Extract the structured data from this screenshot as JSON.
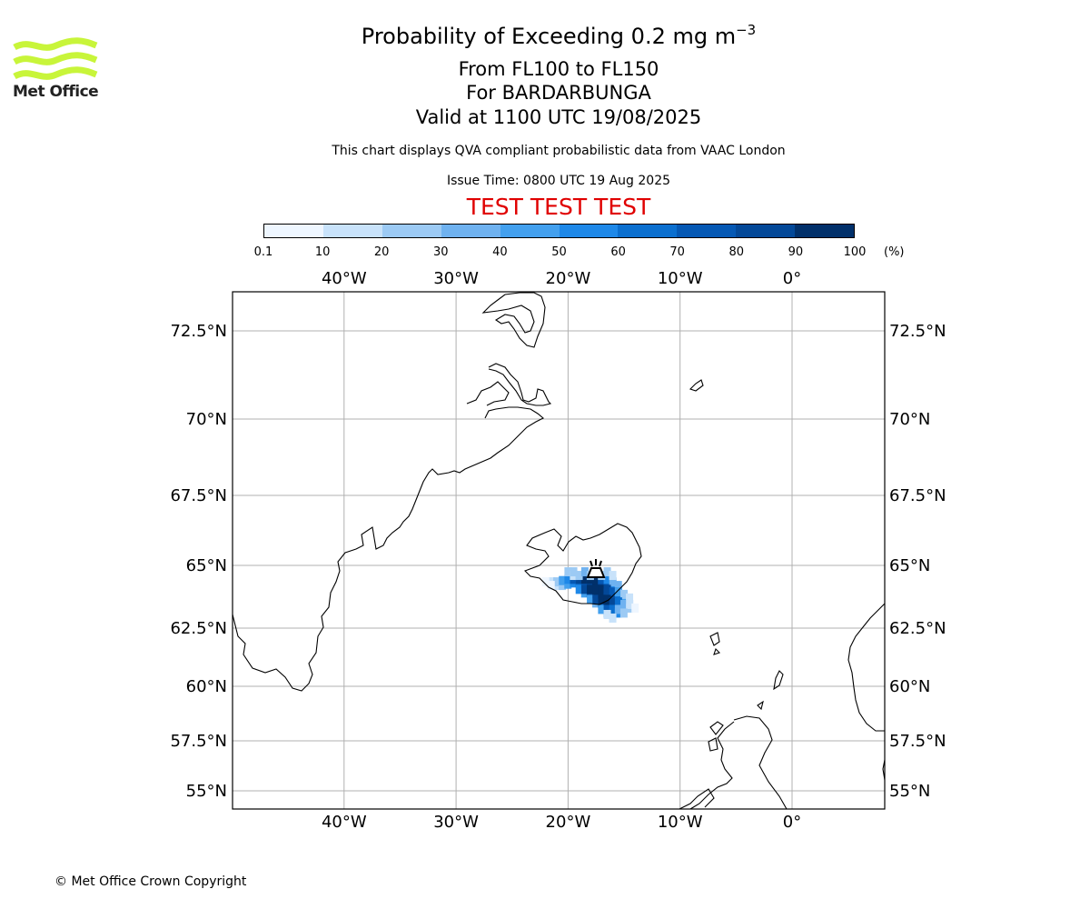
{
  "header": {
    "title_main": "Probability of Exceeding 0.2 mg m",
    "title_exp": "−3",
    "line2": "From FL100 to FL150",
    "line3": "For BARDARBUNGA",
    "line4": "Valid at 1100 UTC 19/08/2025",
    "info1": "This chart displays QVA compliant probabilistic data from VAAC London",
    "info2": "Issue Time: 0800 UTC 19 Aug 2025",
    "test_banner": "TEST TEST TEST",
    "test_color": "#e00000"
  },
  "logo": {
    "text": "Met Office",
    "color": "#c8f53a"
  },
  "colorbar": {
    "colors": [
      "#eef6ff",
      "#c8e2fa",
      "#9ccaf4",
      "#6fb2f0",
      "#43a0ee",
      "#1e88e8",
      "#0b6fcf",
      "#0558b4",
      "#034898",
      "#01306a"
    ],
    "ticks": [
      "0.1",
      "10",
      "20",
      "30",
      "40",
      "50",
      "60",
      "70",
      "80",
      "90",
      "100"
    ],
    "unit": "(%)"
  },
  "map": {
    "lon_labels": [
      "40°W",
      "30°W",
      "20°W",
      "10°W",
      "0°"
    ],
    "lat_labels": [
      "72.5°N",
      "70°N",
      "67.5°N",
      "65°N",
      "62.5°N",
      "60°N",
      "57.5°N",
      "55°N"
    ],
    "volcano_icon": "volcano-icon",
    "plume": [
      {
        "lon": -21.5,
        "lat": 64.2,
        "p": 15
      },
      {
        "lon": -21.0,
        "lat": 64.2,
        "p": 25
      },
      {
        "lon": -20.5,
        "lat": 64.25,
        "p": 45
      },
      {
        "lon": -20.0,
        "lat": 64.3,
        "p": 55
      },
      {
        "lon": -19.5,
        "lat": 64.3,
        "p": 70
      },
      {
        "lon": -19.0,
        "lat": 64.3,
        "p": 80
      },
      {
        "lon": -18.5,
        "lat": 64.3,
        "p": 90
      },
      {
        "lon": -18.0,
        "lat": 64.3,
        "p": 95
      },
      {
        "lon": -17.5,
        "lat": 64.3,
        "p": 90
      },
      {
        "lon": -17.0,
        "lat": 64.3,
        "p": 75
      },
      {
        "lon": -16.5,
        "lat": 64.3,
        "p": 55
      },
      {
        "lon": -16.0,
        "lat": 64.2,
        "p": 35
      },
      {
        "lon": -19.0,
        "lat": 63.9,
        "p": 50
      },
      {
        "lon": -18.5,
        "lat": 63.9,
        "p": 85
      },
      {
        "lon": -18.0,
        "lat": 63.9,
        "p": 95
      },
      {
        "lon": -17.5,
        "lat": 63.9,
        "p": 95
      },
      {
        "lon": -17.0,
        "lat": 63.9,
        "p": 90
      },
      {
        "lon": -16.5,
        "lat": 63.9,
        "p": 85
      },
      {
        "lon": -16.0,
        "lat": 63.8,
        "p": 70
      },
      {
        "lon": -15.5,
        "lat": 63.8,
        "p": 45
      },
      {
        "lon": -15.0,
        "lat": 63.7,
        "p": 20
      },
      {
        "lon": -18.0,
        "lat": 63.5,
        "p": 40
      },
      {
        "lon": -17.5,
        "lat": 63.5,
        "p": 80
      },
      {
        "lon": -17.0,
        "lat": 63.5,
        "p": 95
      },
      {
        "lon": -16.5,
        "lat": 63.5,
        "p": 95
      },
      {
        "lon": -16.0,
        "lat": 63.4,
        "p": 85
      },
      {
        "lon": -15.5,
        "lat": 63.4,
        "p": 60
      },
      {
        "lon": -15.0,
        "lat": 63.3,
        "p": 30
      },
      {
        "lon": -14.5,
        "lat": 63.3,
        "p": 12
      },
      {
        "lon": -17.0,
        "lat": 63.1,
        "p": 40
      },
      {
        "lon": -16.5,
        "lat": 63.1,
        "p": 70
      },
      {
        "lon": -16.0,
        "lat": 63.1,
        "p": 60
      },
      {
        "lon": -15.5,
        "lat": 63.1,
        "p": 30
      },
      {
        "lon": -16.5,
        "lat": 62.9,
        "p": 15
      },
      {
        "lon": -20.0,
        "lat": 64.6,
        "p": 20
      },
      {
        "lon": -19.5,
        "lat": 64.6,
        "p": 25
      },
      {
        "lon": -18.5,
        "lat": 64.6,
        "p": 30
      },
      {
        "lon": -17.5,
        "lat": 64.6,
        "p": 30
      },
      {
        "lon": -16.5,
        "lat": 64.6,
        "p": 20
      },
      {
        "lon": -22.0,
        "lat": 64.2,
        "p": 8
      }
    ]
  },
  "footer": {
    "copyright": "© Met Office Crown Copyright"
  }
}
